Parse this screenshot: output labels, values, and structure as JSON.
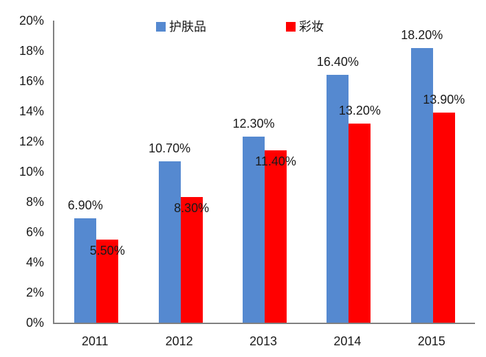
{
  "chart_data": {
    "type": "bar",
    "title": "",
    "categories": [
      "2011",
      "2012",
      "2013",
      "2014",
      "2015"
    ],
    "series": [
      {
        "key": "skincare",
        "name": "护肤品",
        "color": "#5589D0",
        "values": [
          6.9,
          10.7,
          12.3,
          16.4,
          18.2
        ],
        "data_labels": [
          "6.90%",
          "10.70%",
          "12.30%",
          "16.40%",
          "18.20%"
        ]
      },
      {
        "key": "makeup",
        "name": "彩妆",
        "color": "#FF0000",
        "values": [
          5.5,
          8.3,
          11.4,
          13.2,
          13.9
        ],
        "data_labels": [
          "5.50%",
          "8.30%",
          "11.40%",
          "13.20%",
          "13.90%"
        ]
      }
    ],
    "xlabel": "",
    "ylabel": "",
    "ylim": [
      0,
      20
    ],
    "ytick_step": 2,
    "ytick_labels": [
      "0%",
      "2%",
      "4%",
      "6%",
      "8%",
      "10%",
      "12%",
      "14%",
      "16%",
      "18%",
      "20%"
    ],
    "grid": false,
    "legend_position": "top-center",
    "axis_color": "#7f7f7f",
    "text_color": "#1a1a1a",
    "layout_hints": {
      "makeup_label_placement": [
        "overlap",
        "overlap",
        "overlap",
        "above",
        "above"
      ]
    }
  }
}
